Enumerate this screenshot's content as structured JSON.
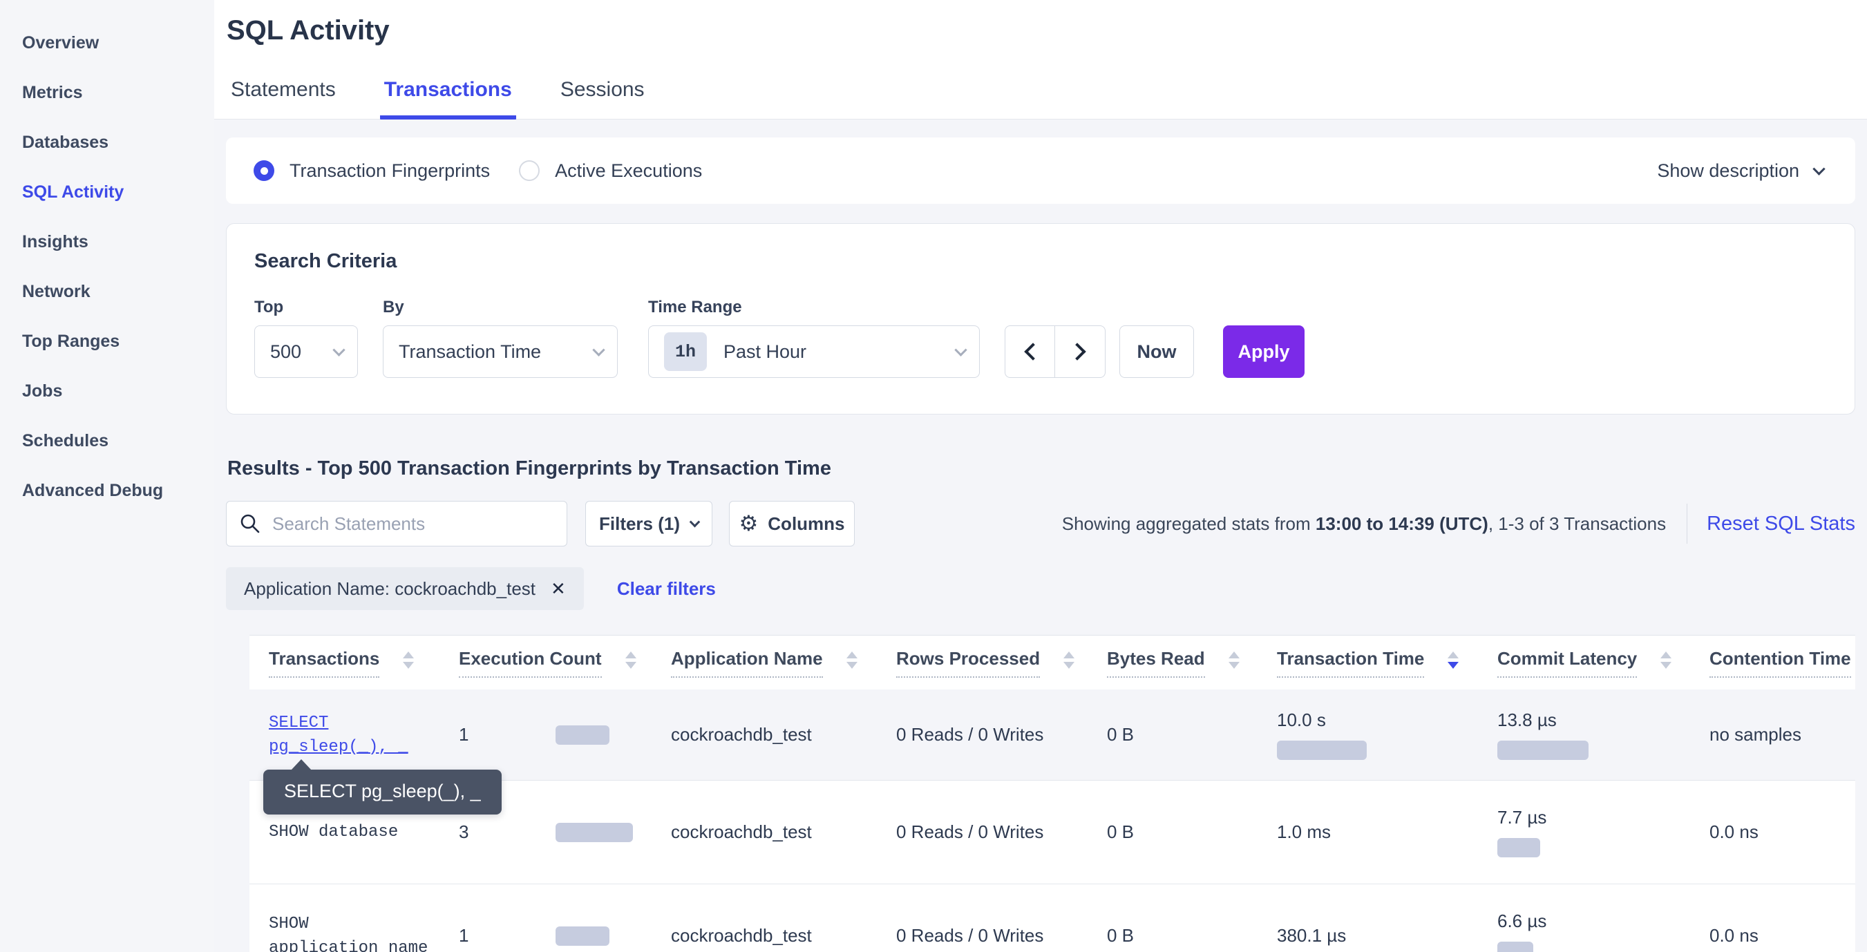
{
  "colors": {
    "accent": "#3E4AE8",
    "apply_purple": "#7B2AE8",
    "bar_fill": "#C6CCDF",
    "tooltip_bg": "#4A5365",
    "page_bg": "#F4F5F9"
  },
  "sidebar": {
    "items": [
      {
        "label": "Overview",
        "active": false
      },
      {
        "label": "Metrics",
        "active": false
      },
      {
        "label": "Databases",
        "active": false
      },
      {
        "label": "SQL Activity",
        "active": true
      },
      {
        "label": "Insights",
        "active": false
      },
      {
        "label": "Network",
        "active": false
      },
      {
        "label": "Top Ranges",
        "active": false
      },
      {
        "label": "Jobs",
        "active": false
      },
      {
        "label": "Schedules",
        "active": false
      },
      {
        "label": "Advanced Debug",
        "active": false
      }
    ]
  },
  "header": {
    "title": "SQL Activity",
    "tabs": [
      {
        "label": "Statements",
        "active": false
      },
      {
        "label": "Transactions",
        "active": true
      },
      {
        "label": "Sessions",
        "active": false
      }
    ]
  },
  "view_toggle": {
    "options": [
      {
        "label": "Transaction Fingerprints",
        "selected": true
      },
      {
        "label": "Active Executions",
        "selected": false
      }
    ],
    "show_description_label": "Show description"
  },
  "search_criteria": {
    "title": "Search Criteria",
    "top_label": "Top",
    "top_value": "500",
    "by_label": "By",
    "by_value": "Transaction Time",
    "time_range_label": "Time Range",
    "time_range_badge": "1h",
    "time_range_value": "Past Hour",
    "now_label": "Now",
    "apply_label": "Apply"
  },
  "results": {
    "heading": "Results - Top 500 Transaction Fingerprints by Transaction Time",
    "search_placeholder": "Search Statements",
    "filters_label": "Filters (1)",
    "columns_label": "Columns",
    "stats_prefix": "Showing aggregated stats from ",
    "stats_range": "13:00 to 14:39 (UTC)",
    "stats_suffix": ", 1-3 of 3 Transactions",
    "reset_label": "Reset SQL Stats",
    "filter_chip": "Application Name: cockroachdb_test",
    "clear_filters_label": "Clear filters"
  },
  "table": {
    "columns": [
      {
        "label": "Transactions",
        "sort": "none"
      },
      {
        "label": "Execution Count",
        "sort": "none"
      },
      {
        "label": "Application Name",
        "sort": "none"
      },
      {
        "label": "Rows Processed",
        "sort": "none"
      },
      {
        "label": "Bytes Read",
        "sort": "none"
      },
      {
        "label": "Transaction Time",
        "sort": "desc"
      },
      {
        "label": "Commit Latency",
        "sort": "none"
      },
      {
        "label": "Contention Time",
        "sort": "none"
      }
    ],
    "tooltip": "SELECT pg_sleep(_), _",
    "rows": [
      {
        "query_line1": "SELECT",
        "query_line2": "pg_sleep(_), _",
        "execution_count": "1",
        "execution_bar": 78,
        "application_name": "cockroachdb_test",
        "rows_processed": "0 Reads / 0 Writes",
        "bytes_read": "0 B",
        "transaction_time": "10.0 s",
        "transaction_time_bar": 130,
        "commit_latency": "13.8 µs",
        "commit_latency_bar": 132,
        "contention_time": "no samples"
      },
      {
        "query_line1": "SHOW database",
        "query_line2": "",
        "execution_count": "3",
        "execution_bar": 112,
        "application_name": "cockroachdb_test",
        "rows_processed": "0 Reads / 0 Writes",
        "bytes_read": "0 B",
        "transaction_time": "1.0 ms",
        "transaction_time_bar": 0,
        "commit_latency": "7.7 µs",
        "commit_latency_bar": 62,
        "contention_time": "0.0 ns"
      },
      {
        "query_line1": "SHOW",
        "query_line2": "application_name",
        "execution_count": "1",
        "execution_bar": 78,
        "application_name": "cockroachdb_test",
        "rows_processed": "0 Reads / 0 Writes",
        "bytes_read": "0 B",
        "transaction_time": "380.1 µs",
        "transaction_time_bar": 0,
        "commit_latency": "6.6 µs",
        "commit_latency_bar": 52,
        "contention_time": "0.0 ns"
      }
    ]
  }
}
